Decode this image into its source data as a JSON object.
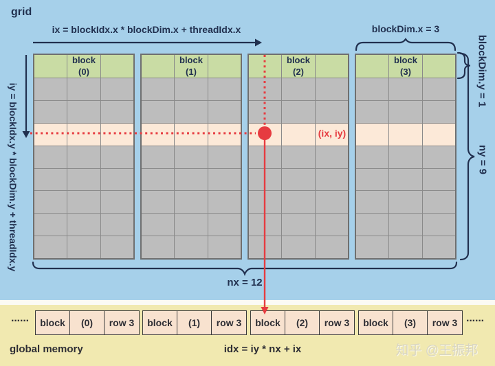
{
  "colors": {
    "background_blue": "#a6d0ea",
    "background_yellow": "#f1e9b0",
    "navy": "#21304f",
    "green_header": "#c9dca4",
    "gray_cell": "#bdbdbd",
    "cell_border": "#8a8a8a",
    "block_border": "#6f6f6f",
    "highlight_peach": "#fce9d8",
    "red": "#e63b40",
    "memory_cell_fill": "#f8e2cf",
    "memory_cell_border": "#3c3c3c",
    "ink": "#2e2e34",
    "watermark_gray": "#d8d5c2"
  },
  "grid_section": {
    "title": "grid",
    "ix_formula": "ix = blockIdx.x * blockDim.x + threadIdx.x",
    "iy_formula": "iy = blockIdx.y * blockDim.y + threadIdx.y",
    "block_dim_x_label": "blockDim.x = 3",
    "block_dim_y_label": "blockDim.y = 1",
    "ny_label": "ny = 9",
    "nx_label": "nx = 12",
    "thread_point_label": "(ix, iy)",
    "block_word": "block",
    "block_indices": [
      "(0)",
      "(1)",
      "(2)",
      "(3)"
    ],
    "columns_per_block": 3,
    "rows_per_block": 9,
    "highlight_row_index": 3
  },
  "memory_section": {
    "title": "global memory",
    "idx_formula": "idx = iy * nx + ix",
    "ellipsis_left": "······",
    "ellipsis_right": "······",
    "groups": [
      [
        "block",
        "(0)",
        "row 3"
      ],
      [
        "block",
        "(1)",
        "row 3"
      ],
      [
        "block",
        "(2)",
        "row 3"
      ],
      [
        "block",
        "(3)",
        "row 3"
      ]
    ]
  },
  "watermark": "知乎 @王振邦"
}
